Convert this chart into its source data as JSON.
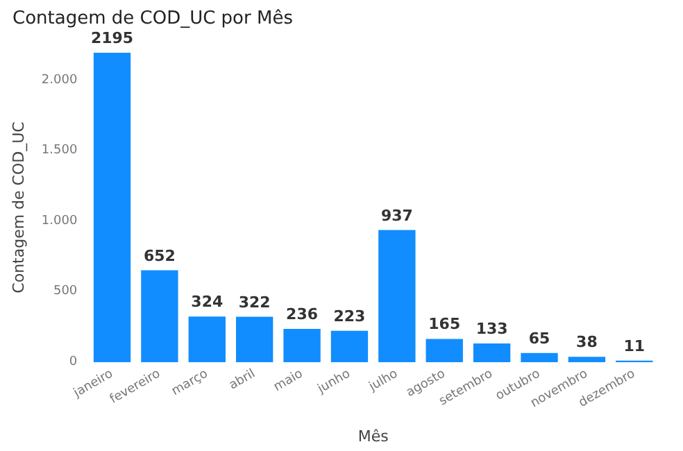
{
  "chart_data": {
    "type": "bar",
    "title": "Contagem de COD_UC por Mês",
    "xlabel": "Mês",
    "ylabel": "Contagem de COD_UC",
    "categories": [
      "janeiro",
      "fevereiro",
      "março",
      "abril",
      "maio",
      "junho",
      "julho",
      "agosto",
      "setembro",
      "outubro",
      "novembro",
      "dezembro"
    ],
    "values": [
      2195,
      652,
      324,
      322,
      236,
      223,
      937,
      165,
      133,
      65,
      38,
      11
    ],
    "color": "#118dff",
    "ylim": [
      0,
      2195
    ],
    "yticks": [
      0,
      500,
      {
        "value": 1000,
        "label": "1.000"
      },
      {
        "value": 1500,
        "label": "1.500"
      },
      {
        "value": 2000,
        "label": "2.000"
      }
    ],
    "data_labels": true,
    "grid": false
  }
}
